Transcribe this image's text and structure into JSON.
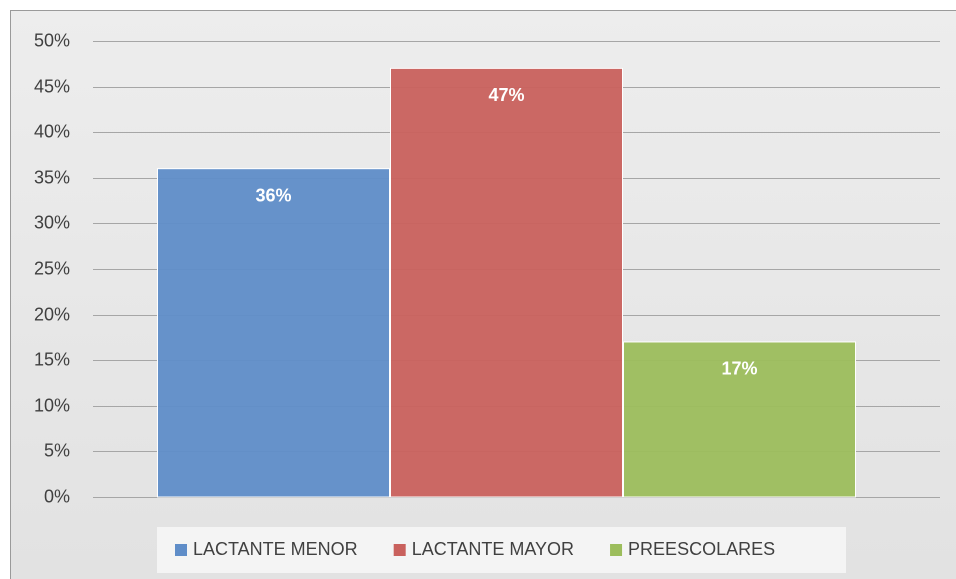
{
  "chart_data": {
    "type": "bar",
    "series": [
      {
        "name": "LACTANTE MENOR",
        "color": "#5f8dc8",
        "values": [
          36
        ],
        "value_labels": [
          "36%"
        ]
      },
      {
        "name": "LACTANTE MAYOR",
        "color": "#c9615d",
        "values": [
          47
        ],
        "value_labels": [
          "47%"
        ]
      },
      {
        "name": "PREESCOLARES",
        "color": "#9cbd5c",
        "values": [
          17
        ],
        "value_labels": [
          "17%"
        ]
      }
    ],
    "ylim": [
      0,
      50
    ],
    "yticks": [
      {
        "value": 0,
        "label": "0%"
      },
      {
        "value": 5,
        "label": "5%"
      },
      {
        "value": 10,
        "label": "10%"
      },
      {
        "value": 15,
        "label": "15%"
      },
      {
        "value": 20,
        "label": "20%"
      },
      {
        "value": 25,
        "label": "25%"
      },
      {
        "value": 30,
        "label": "30%"
      },
      {
        "value": 35,
        "label": "35%"
      },
      {
        "value": 40,
        "label": "40%"
      },
      {
        "value": 45,
        "label": "45%"
      },
      {
        "value": 50,
        "label": "50%"
      }
    ],
    "grid": true,
    "legend": "bottom"
  }
}
